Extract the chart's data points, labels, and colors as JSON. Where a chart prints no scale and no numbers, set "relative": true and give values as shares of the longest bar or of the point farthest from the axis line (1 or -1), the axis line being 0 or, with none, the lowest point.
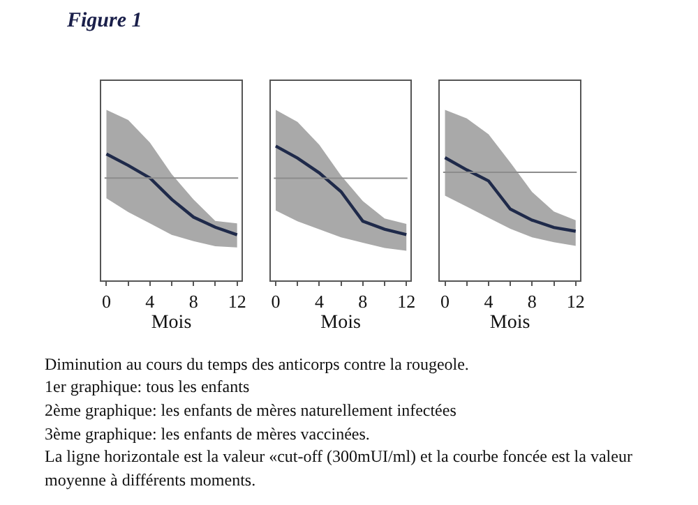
{
  "chart_data": [
    {
      "type": "line",
      "title": "Figure 1",
      "relative": true,
      "x": [
        0,
        2,
        4,
        6,
        8,
        10,
        12
      ],
      "xlim": [
        -0.47,
        12.4
      ],
      "xticks": [
        0,
        {
          "value": 2,
          "label": null
        },
        4,
        {
          "value": 6,
          "label": null
        },
        8,
        {
          "value": 10,
          "label": null
        },
        12
      ],
      "xlabel": "Mois",
      "tick_labels": "x",
      "marker": "none",
      "line_style": "solid",
      "series": [
        {
          "color": "#1f2a4a",
          "values": [
            1.0,
            0.91,
            0.81,
            0.64,
            0.5,
            0.42,
            0.36
          ],
          "lower": [
            0.65,
            0.54,
            0.45,
            0.36,
            0.31,
            0.27,
            0.26
          ],
          "upper": [
            1.35,
            1.27,
            1.09,
            0.84,
            0.64,
            0.47,
            0.45
          ]
        }
      ],
      "ref_lines": [
        {
          "axis": "y",
          "value": 0.81,
          "color": "#8c8c8c"
        }
      ],
      "annotations": [
        "Diminution au cours du temps des anticorps contre la rougeole.",
        "1er graphique: tous les enfants",
        "2ème graphique: les enfants de mères naturellement infectées",
        "3ème graphique: les enfants de mères vaccinées.",
        "La ligne horizontale est la valeur «cut-off (300mUI/ml) et la courbe foncée est la valeur",
        "moyenne à différents moments."
      ]
    },
    {
      "type": "line",
      "relative": true,
      "x": [
        0,
        2,
        4,
        6,
        8,
        10,
        12
      ],
      "xlim": [
        -0.47,
        12.4
      ],
      "xticks": [
        0,
        {
          "value": 2,
          "label": null
        },
        4,
        {
          "value": 6,
          "label": null
        },
        8,
        {
          "value": 10,
          "label": null
        },
        12
      ],
      "xlabel": "Mois",
      "tick_labels": "x",
      "marker": "none",
      "line_style": "solid",
      "series": [
        {
          "color": "#1f2a4a",
          "values": [
            1.0,
            0.91,
            0.8,
            0.66,
            0.44,
            0.38,
            0.34
          ],
          "lower": [
            0.52,
            0.44,
            0.38,
            0.32,
            0.28,
            0.24,
            0.22
          ],
          "upper": [
            1.27,
            1.18,
            1.01,
            0.78,
            0.59,
            0.46,
            0.42
          ]
        }
      ],
      "ref_lines": [
        {
          "axis": "y",
          "value": 0.76,
          "color": "#8c8c8c"
        }
      ]
    },
    {
      "type": "line",
      "relative": true,
      "x": [
        0,
        2,
        4,
        6,
        8,
        10,
        12
      ],
      "xlim": [
        -0.47,
        12.4
      ],
      "xticks": [
        0,
        {
          "value": 2,
          "label": null
        },
        4,
        {
          "value": 6,
          "label": null
        },
        8,
        {
          "value": 10,
          "label": null
        },
        12
      ],
      "xlabel": "Mois",
      "tick_labels": "x",
      "marker": "none",
      "line_style": "solid",
      "series": [
        {
          "color": "#1f2a4a",
          "values": [
            1.0,
            0.9,
            0.81,
            0.58,
            0.49,
            0.43,
            0.4
          ],
          "lower": [
            0.69,
            0.6,
            0.51,
            0.42,
            0.35,
            0.31,
            0.28
          ],
          "upper": [
            1.39,
            1.32,
            1.19,
            0.96,
            0.72,
            0.56,
            0.49
          ]
        }
      ],
      "ref_lines": [
        {
          "axis": "y",
          "value": 0.88,
          "color": "#8c8c8c"
        }
      ]
    }
  ]
}
